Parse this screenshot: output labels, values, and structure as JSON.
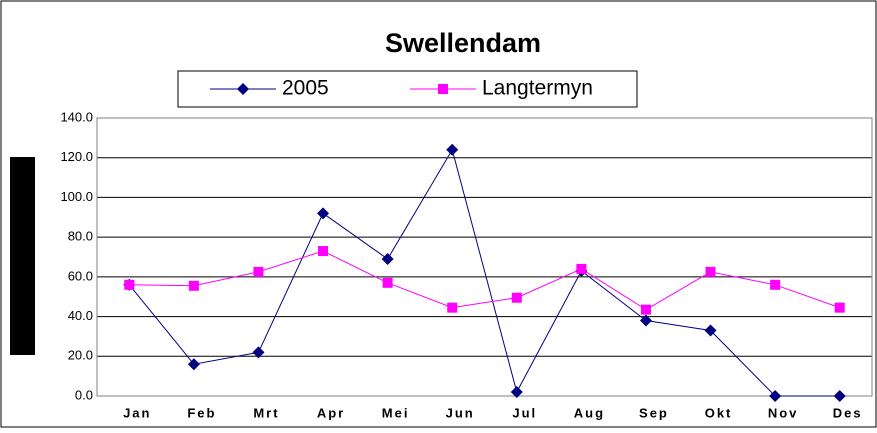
{
  "chart_data": {
    "type": "line",
    "title": "Swellendam",
    "categories": [
      "Jan",
      "Feb",
      "Mrt",
      "Apr",
      "Mei",
      "Jun",
      "Jul",
      "Aug",
      "Sep",
      "Okt",
      "Nov",
      "Des"
    ],
    "series": [
      {
        "name": "2005",
        "color": "#000080",
        "marker": "diamond",
        "values": [
          56,
          16,
          22,
          92,
          69,
          124,
          2,
          63,
          38,
          33,
          0,
          0
        ]
      },
      {
        "name": "Langtermyn",
        "color": "#ff00ff",
        "marker": "square",
        "values": [
          56,
          55.5,
          62.5,
          73,
          57,
          44.5,
          49.5,
          64,
          43.5,
          62.5,
          56,
          44.5
        ]
      }
    ],
    "ylim": [
      0,
      140
    ],
    "yticks": [
      {
        "value": 0,
        "label": "0.0"
      },
      {
        "value": 20,
        "label": "20.0"
      },
      {
        "value": 40,
        "label": "40.0"
      },
      {
        "value": 60,
        "label": "60.0"
      },
      {
        "value": 80,
        "label": "80.0"
      },
      {
        "value": 100,
        "label": "100.0"
      },
      {
        "value": 120,
        "label": "120.0"
      },
      {
        "value": 140,
        "label": "140.0"
      }
    ],
    "grid": true,
    "legend": "top"
  }
}
